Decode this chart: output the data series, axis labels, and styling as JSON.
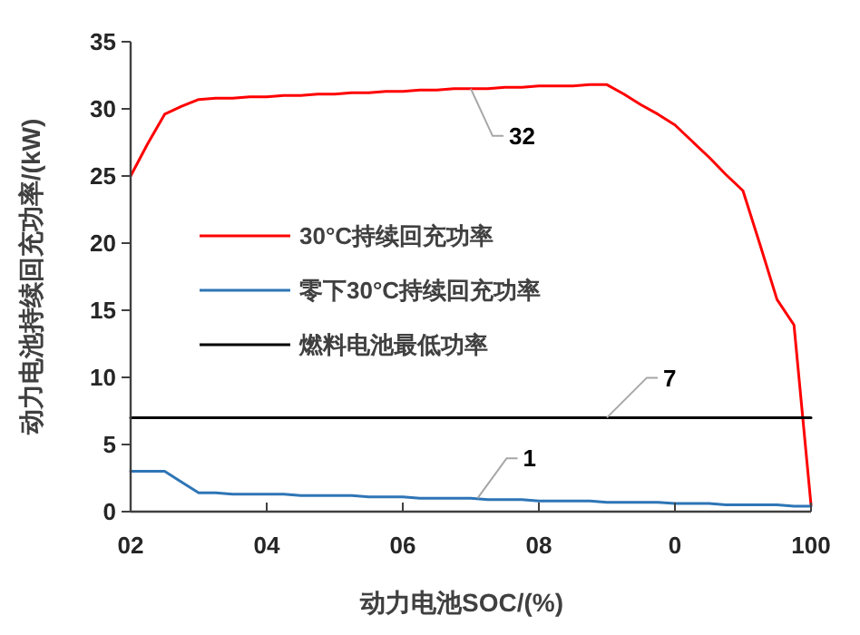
{
  "chart_data": {
    "type": "line",
    "xlabel": "动力电池SOC/(%)",
    "ylabel": "动力电池持续回充功率/(kW)",
    "categories": [
      "02",
      null,
      null,
      null,
      null,
      null,
      null,
      null,
      "04",
      null,
      null,
      null,
      null,
      null,
      null,
      null,
      "06",
      null,
      null,
      null,
      null,
      null,
      null,
      null,
      "08",
      null,
      null,
      null,
      null,
      null,
      null,
      null,
      "0",
      null,
      null,
      null,
      null,
      null,
      null,
      null,
      "100"
    ],
    "ylim": [
      0,
      35
    ],
    "yticks": [
      0,
      5,
      10,
      15,
      20,
      25,
      30,
      35
    ],
    "series": [
      {
        "name": "30°C持续回充功率",
        "color": "#ff0000",
        "values": [
          25,
          27.4,
          29.6,
          30.2,
          30.7,
          30.8,
          30.8,
          30.9,
          30.9,
          31.0,
          31.0,
          31.1,
          31.1,
          31.2,
          31.2,
          31.3,
          31.3,
          31.4,
          31.4,
          31.5,
          31.5,
          31.5,
          31.6,
          31.6,
          31.7,
          31.7,
          31.7,
          31.8,
          31.8,
          31.1,
          30.3,
          29.6,
          28.8,
          27.6,
          26.4,
          25.1,
          23.9,
          19.9,
          15.8,
          13.9,
          0.5
        ]
      },
      {
        "name": "零下30°C持续回充功率",
        "color": "#2e75b6",
        "values": [
          3,
          3,
          3,
          2.2,
          1.4,
          1.4,
          1.3,
          1.3,
          1.3,
          1.3,
          1.2,
          1.2,
          1.2,
          1.2,
          1.1,
          1.1,
          1.1,
          1.0,
          1.0,
          1.0,
          1.0,
          0.9,
          0.9,
          0.9,
          0.8,
          0.8,
          0.8,
          0.8,
          0.7,
          0.7,
          0.7,
          0.7,
          0.6,
          0.6,
          0.6,
          0.5,
          0.5,
          0.5,
          0.5,
          0.4,
          0.4
        ]
      },
      {
        "name": "燃料电池最低功率",
        "color": "#000000",
        "values": [
          7,
          7,
          7,
          7,
          7,
          7,
          7,
          7,
          7,
          7,
          7,
          7,
          7,
          7,
          7,
          7,
          7,
          7,
          7,
          7,
          7,
          7,
          7,
          7,
          7,
          7,
          7,
          7,
          7,
          7,
          7,
          7,
          7,
          7,
          7,
          7,
          7,
          7,
          7,
          7,
          7
        ]
      }
    ],
    "annotations": [
      {
        "text": "32",
        "y": 31.5
      },
      {
        "text": "7",
        "y": 7
      },
      {
        "text": "1",
        "y": 1.0
      }
    ],
    "legend": "left",
    "grid": false
  }
}
